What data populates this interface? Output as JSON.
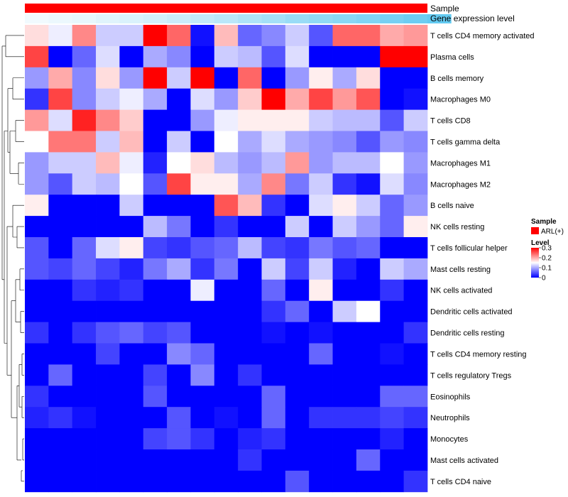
{
  "chart_data": {
    "type": "heatmap",
    "annotations": {
      "sample_label": "Sample",
      "gene_label": "Gene expression level",
      "sample_color": "#ff0000",
      "gene_levels": [
        0.02,
        0.05,
        0.08,
        0.12,
        0.16,
        0.2,
        0.25,
        0.3,
        0.35,
        0.42,
        0.48,
        0.55,
        0.6,
        0.65,
        0.7,
        0.76,
        0.82,
        0.88
      ]
    },
    "rows": [
      "T cells CD4 memory activated",
      "Plasma cells",
      "B cells memory",
      "Macrophages M0",
      "T cells CD8",
      "T cells gamma delta",
      "Macrophages M1",
      "Macrophages M2",
      "B cells naive",
      "NK cells resting",
      "T cells follicular helper",
      "Mast cells resting",
      "NK cells activated",
      "Dendritic cells activated",
      "Dendritic cells resting",
      "T cells CD4 memory resting",
      "T cells regulatory  Tregs",
      "Eosinophils",
      "Neutrophils",
      "Monocytes",
      "Mast cells activated",
      "T cells CD4 naive"
    ],
    "values": [
      [
        0.17,
        0.14,
        0.22,
        0.12,
        0.12,
        0.3,
        0.24,
        0.01,
        0.19,
        0.06,
        0.08,
        0.12,
        0.05,
        0.24,
        0.24,
        0.2,
        0.21
      ],
      [
        0.26,
        0.0,
        0.06,
        0.13,
        0.0,
        0.1,
        0.08,
        0.0,
        0.12,
        0.11,
        0.05,
        0.13,
        0.0,
        0.0,
        0.0,
        0.3,
        0.31
      ],
      [
        0.09,
        0.2,
        0.08,
        0.17,
        0.09,
        0.3,
        0.12,
        0.3,
        0.0,
        0.24,
        0.0,
        0.09,
        0.16,
        0.1,
        0.17,
        0.0,
        0.0
      ],
      [
        0.03,
        0.26,
        0.08,
        0.12,
        0.14,
        0.1,
        0.0,
        0.13,
        0.09,
        0.18,
        0.3,
        0.2,
        0.26,
        0.21,
        0.25,
        0.0,
        0.01
      ],
      [
        0.21,
        0.13,
        0.28,
        0.22,
        0.18,
        0.0,
        0.0,
        0.09,
        0.14,
        0.16,
        0.16,
        0.16,
        0.12,
        0.11,
        0.11,
        0.05,
        0.12
      ],
      [
        0.15,
        0.23,
        0.23,
        0.12,
        0.19,
        0.0,
        0.12,
        0.0,
        0.15,
        0.1,
        0.13,
        0.1,
        0.09,
        0.08,
        0.05,
        0.09,
        0.08
      ],
      [
        0.09,
        0.12,
        0.12,
        0.19,
        0.14,
        0.02,
        0.15,
        0.17,
        0.11,
        0.09,
        0.11,
        0.21,
        0.09,
        0.11,
        0.11,
        0.15,
        0.09
      ],
      [
        0.09,
        0.05,
        0.12,
        0.11,
        0.15,
        0.05,
        0.26,
        0.16,
        0.16,
        0.1,
        0.22,
        0.07,
        0.12,
        0.03,
        0.01,
        0.13,
        0.08
      ],
      [
        0.16,
        0.0,
        0.0,
        0.0,
        0.12,
        0.0,
        0.0,
        0.0,
        0.25,
        0.19,
        0.03,
        0.0,
        0.13,
        0.16,
        0.12,
        0.06,
        0.09
      ],
      [
        0.0,
        0.0,
        0.0,
        0.0,
        0.0,
        0.11,
        0.07,
        0.0,
        0.03,
        0.0,
        0.0,
        0.12,
        0.0,
        0.12,
        0.09,
        0.06,
        0.16
      ],
      [
        0.05,
        0.0,
        0.06,
        0.13,
        0.16,
        0.04,
        0.03,
        0.05,
        0.06,
        0.11,
        0.04,
        0.03,
        0.07,
        0.05,
        0.06,
        0.0,
        0.0
      ],
      [
        0.05,
        0.04,
        0.06,
        0.04,
        0.02,
        0.07,
        0.1,
        0.03,
        0.07,
        0.0,
        0.12,
        0.04,
        0.12,
        0.02,
        0.0,
        0.12,
        0.1
      ],
      [
        0.0,
        0.0,
        0.03,
        0.02,
        0.03,
        0.0,
        0.0,
        0.14,
        0.0,
        0.0,
        0.06,
        0.0,
        0.16,
        0.0,
        0.0,
        0.03,
        0.0
      ],
      [
        0.0,
        0.0,
        0.0,
        0.0,
        0.0,
        0.0,
        0.0,
        0.0,
        0.0,
        0.0,
        0.03,
        0.06,
        0.0,
        0.12,
        0.15,
        0.0,
        0.0
      ],
      [
        0.03,
        0.0,
        0.03,
        0.05,
        0.06,
        0.04,
        0.05,
        0.0,
        0.0,
        0.0,
        0.01,
        0.0,
        0.01,
        0.0,
        0.0,
        0.0,
        0.03
      ],
      [
        0.0,
        0.0,
        0.0,
        0.04,
        0.0,
        0.0,
        0.08,
        0.06,
        0.0,
        0.0,
        0.0,
        0.0,
        0.06,
        0.0,
        0.0,
        0.01,
        0.0
      ],
      [
        0.0,
        0.06,
        0.0,
        0.0,
        0.0,
        0.04,
        0.0,
        0.08,
        0.0,
        0.03,
        0.0,
        0.0,
        0.0,
        0.0,
        0.0,
        0.0,
        0.0
      ],
      [
        0.03,
        0.0,
        0.0,
        0.0,
        0.0,
        0.05,
        0.0,
        0.0,
        0.0,
        0.0,
        0.06,
        0.0,
        0.0,
        0.0,
        0.0,
        0.06,
        0.06
      ],
      [
        0.02,
        0.03,
        0.01,
        0.0,
        0.0,
        0.0,
        0.05,
        0.0,
        0.01,
        0.0,
        0.06,
        0.0,
        0.03,
        0.03,
        0.03,
        0.04,
        0.03
      ],
      [
        0.0,
        0.0,
        0.0,
        0.0,
        0.0,
        0.04,
        0.05,
        0.03,
        0.0,
        0.02,
        0.03,
        0.0,
        0.0,
        0.0,
        0.0,
        0.02,
        0.0
      ],
      [
        0.0,
        0.0,
        0.0,
        0.0,
        0.0,
        0.0,
        0.0,
        0.0,
        0.0,
        0.03,
        0.0,
        0.0,
        0.0,
        0.0,
        0.06,
        0.0,
        0.0
      ],
      [
        0.0,
        0.0,
        0.0,
        0.0,
        0.0,
        0.0,
        0.0,
        0.0,
        0.0,
        0.0,
        0.0,
        0.05,
        0.0,
        0.0,
        0.0,
        0.0,
        0.03
      ]
    ],
    "colorscale": {
      "low": "#0000ff",
      "mid": "#ffffff",
      "high": "#ff0000",
      "min": 0,
      "mid_value": 0.15,
      "max": 0.3
    },
    "legend": {
      "sample_title": "Sample",
      "sample_entry": "ARL(+)",
      "level_title": "Level",
      "level_ticks": [
        "0.3",
        "0.2",
        "0.1",
        "0"
      ],
      "level_tick_values": [
        0.3,
        0.2,
        0.1,
        0
      ]
    },
    "row_dendrogram": true
  }
}
